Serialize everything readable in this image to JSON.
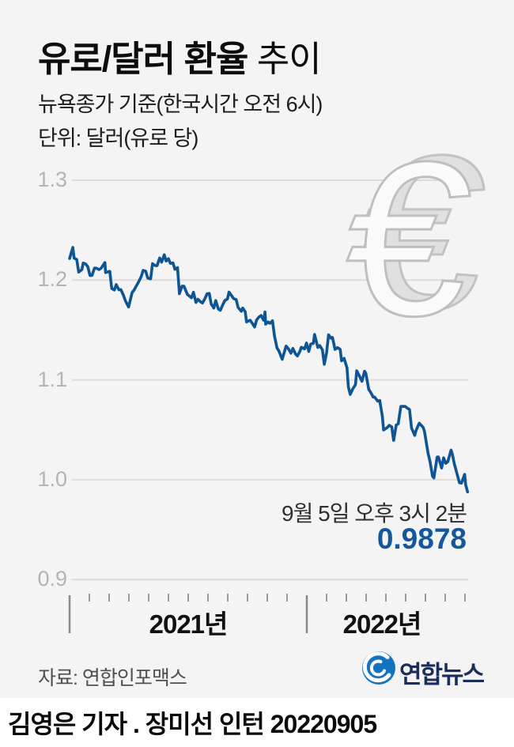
{
  "header": {
    "title_bold": "유로/달러 환율",
    "title_regular": " 추이",
    "subtitle": "뉴욕종가 기준(한국시간 오전 6시)",
    "unit": "단위: 달러(유로 당)"
  },
  "chart_data": {
    "type": "line",
    "title": "유로/달러 환율 추이",
    "ylabel": "달러(유로 당)",
    "ylim": [
      0.9,
      1.3
    ],
    "y_ticks": [
      1.3,
      1.2,
      1.1,
      1.0,
      0.9
    ],
    "y_tick_labels": [
      "1.3",
      "1.2",
      "1.1",
      "1.0",
      "0.9"
    ],
    "grid": true,
    "line_color": "#0d5594",
    "x_range": [
      "2021-01-01",
      "2022-09-05"
    ],
    "x_year_ticks": [
      {
        "date": "2021-01-01",
        "label": "2021년"
      },
      {
        "date": "2022-01-01",
        "label": "2022년"
      }
    ],
    "x_minor_tick_unit": "month",
    "annotation": {
      "time_label": "9월 5일 오후 3시 2분",
      "value_label": "0.9878",
      "value": 0.9878,
      "date": "2022-09-05"
    },
    "series": [
      {
        "name": "EUR/USD",
        "points": [
          [
            "2021-01-01",
            1.2216
          ],
          [
            "2021-01-06",
            1.2327
          ],
          [
            "2021-01-08",
            1.222
          ],
          [
            "2021-01-12",
            1.2207
          ],
          [
            "2021-01-15",
            1.208
          ],
          [
            "2021-01-20",
            1.2105
          ],
          [
            "2021-01-22",
            1.217
          ],
          [
            "2021-01-26",
            1.216
          ],
          [
            "2021-01-29",
            1.2135
          ],
          [
            "2021-02-02",
            1.2045
          ],
          [
            "2021-02-05",
            1.2047
          ],
          [
            "2021-02-09",
            1.212
          ],
          [
            "2021-02-12",
            1.2119
          ],
          [
            "2021-02-16",
            1.2105
          ],
          [
            "2021-02-19",
            1.2118
          ],
          [
            "2021-02-25",
            1.2175
          ],
          [
            "2021-02-26",
            1.2075
          ],
          [
            "2021-03-02",
            1.2088
          ],
          [
            "2021-03-05",
            1.1915
          ],
          [
            "2021-03-09",
            1.19
          ],
          [
            "2021-03-12",
            1.1955
          ],
          [
            "2021-03-16",
            1.1903
          ],
          [
            "2021-03-19",
            1.1905
          ],
          [
            "2021-03-23",
            1.185
          ],
          [
            "2021-03-26",
            1.1794
          ],
          [
            "2021-03-31",
            1.173
          ],
          [
            "2021-04-06",
            1.1875
          ],
          [
            "2021-04-09",
            1.19
          ],
          [
            "2021-04-13",
            1.1947
          ],
          [
            "2021-04-16",
            1.1982
          ],
          [
            "2021-04-20",
            1.2035
          ],
          [
            "2021-04-23",
            1.2097
          ],
          [
            "2021-04-27",
            1.2088
          ],
          [
            "2021-04-30",
            1.202
          ],
          [
            "2021-05-04",
            1.2013
          ],
          [
            "2021-05-07",
            1.2165
          ],
          [
            "2021-05-11",
            1.2145
          ],
          [
            "2021-05-14",
            1.2144
          ],
          [
            "2021-05-18",
            1.2222
          ],
          [
            "2021-05-21",
            1.218
          ],
          [
            "2021-05-25",
            1.2254
          ],
          [
            "2021-05-28",
            1.219
          ],
          [
            "2021-06-01",
            1.2214
          ],
          [
            "2021-06-04",
            1.2167
          ],
          [
            "2021-06-08",
            1.2172
          ],
          [
            "2021-06-11",
            1.2108
          ],
          [
            "2021-06-15",
            1.2125
          ],
          [
            "2021-06-18",
            1.1863
          ],
          [
            "2021-06-22",
            1.194
          ],
          [
            "2021-06-25",
            1.1938
          ],
          [
            "2021-06-30",
            1.1858
          ],
          [
            "2021-07-06",
            1.1823
          ],
          [
            "2021-07-09",
            1.1878
          ],
          [
            "2021-07-13",
            1.1775
          ],
          [
            "2021-07-16",
            1.1808
          ],
          [
            "2021-07-20",
            1.1782
          ],
          [
            "2021-07-23",
            1.177
          ],
          [
            "2021-07-27",
            1.1816
          ],
          [
            "2021-07-30",
            1.1862
          ],
          [
            "2021-08-03",
            1.1866
          ],
          [
            "2021-08-06",
            1.1761
          ],
          [
            "2021-08-10",
            1.172
          ],
          [
            "2021-08-13",
            1.1795
          ],
          [
            "2021-08-17",
            1.171
          ],
          [
            "2021-08-20",
            1.1697
          ],
          [
            "2021-08-24",
            1.1755
          ],
          [
            "2021-08-27",
            1.1795
          ],
          [
            "2021-08-31",
            1.181
          ],
          [
            "2021-09-03",
            1.188
          ],
          [
            "2021-09-07",
            1.1843
          ],
          [
            "2021-09-10",
            1.1815
          ],
          [
            "2021-09-14",
            1.1805
          ],
          [
            "2021-09-17",
            1.1725
          ],
          [
            "2021-09-22",
            1.1687
          ],
          [
            "2021-09-24",
            1.172
          ],
          [
            "2021-09-28",
            1.1683
          ],
          [
            "2021-09-30",
            1.158
          ],
          [
            "2021-10-05",
            1.1598
          ],
          [
            "2021-10-08",
            1.1571
          ],
          [
            "2021-10-12",
            1.153
          ],
          [
            "2021-10-15",
            1.16
          ],
          [
            "2021-10-19",
            1.1633
          ],
          [
            "2021-10-22",
            1.1645
          ],
          [
            "2021-10-26",
            1.1596
          ],
          [
            "2021-10-28",
            1.168
          ],
          [
            "2021-10-29",
            1.1558
          ],
          [
            "2021-11-02",
            1.158
          ],
          [
            "2021-11-05",
            1.1567
          ],
          [
            "2021-11-09",
            1.1592
          ],
          [
            "2021-11-12",
            1.1445
          ],
          [
            "2021-11-16",
            1.132
          ],
          [
            "2021-11-19",
            1.1288
          ],
          [
            "2021-11-24",
            1.1206
          ],
          [
            "2021-11-30",
            1.1339
          ],
          [
            "2021-12-03",
            1.1313
          ],
          [
            "2021-12-07",
            1.1268
          ],
          [
            "2021-12-10",
            1.1315
          ],
          [
            "2021-12-14",
            1.126
          ],
          [
            "2021-12-17",
            1.124
          ],
          [
            "2021-12-21",
            1.1288
          ],
          [
            "2021-12-23",
            1.1327
          ],
          [
            "2021-12-28",
            1.131
          ],
          [
            "2021-12-31",
            1.137
          ],
          [
            "2022-01-04",
            1.1285
          ],
          [
            "2022-01-07",
            1.1359
          ],
          [
            "2022-01-11",
            1.1366
          ],
          [
            "2022-01-13",
            1.1455
          ],
          [
            "2022-01-18",
            1.1325
          ],
          [
            "2022-01-21",
            1.1344
          ],
          [
            "2022-01-25",
            1.1301
          ],
          [
            "2022-01-28",
            1.1156
          ],
          [
            "2022-02-01",
            1.1273
          ],
          [
            "2022-02-04",
            1.1452
          ],
          [
            "2022-02-08",
            1.1417
          ],
          [
            "2022-02-10",
            1.1426
          ],
          [
            "2022-02-14",
            1.1306
          ],
          [
            "2022-02-18",
            1.1324
          ],
          [
            "2022-02-22",
            1.1306
          ],
          [
            "2022-02-24",
            1.1192
          ],
          [
            "2022-02-28",
            1.1216
          ],
          [
            "2022-03-02",
            1.1121
          ],
          [
            "2022-03-04",
            1.0932
          ],
          [
            "2022-03-07",
            1.0854
          ],
          [
            "2022-03-11",
            1.0911
          ],
          [
            "2022-03-15",
            1.0952
          ],
          [
            "2022-03-17",
            1.1091
          ],
          [
            "2022-03-22",
            1.1028
          ],
          [
            "2022-03-25",
            1.0986
          ],
          [
            "2022-03-29",
            1.1087
          ],
          [
            "2022-03-31",
            1.1067
          ],
          [
            "2022-04-05",
            1.0905
          ],
          [
            "2022-04-08",
            1.0876
          ],
          [
            "2022-04-12",
            1.0827
          ],
          [
            "2022-04-14",
            1.0828
          ],
          [
            "2022-04-19",
            1.0786
          ],
          [
            "2022-04-22",
            1.0794
          ],
          [
            "2022-04-26",
            1.0637
          ],
          [
            "2022-04-28",
            1.0498
          ],
          [
            "2022-05-03",
            1.0522
          ],
          [
            "2022-05-06",
            1.0545
          ],
          [
            "2022-05-10",
            1.0529
          ],
          [
            "2022-05-13",
            1.0394
          ],
          [
            "2022-05-17",
            1.0549
          ],
          [
            "2022-05-20",
            1.056
          ],
          [
            "2022-05-24",
            1.0734
          ],
          [
            "2022-05-27",
            1.0735
          ],
          [
            "2022-05-31",
            1.0734
          ],
          [
            "2022-06-03",
            1.0719
          ],
          [
            "2022-06-07",
            1.0703
          ],
          [
            "2022-06-10",
            1.0518
          ],
          [
            "2022-06-15",
            1.0444
          ],
          [
            "2022-06-17",
            1.0493
          ],
          [
            "2022-06-22",
            1.0566
          ],
          [
            "2022-06-24",
            1.0552
          ],
          [
            "2022-06-28",
            1.0524
          ],
          [
            "2022-06-30",
            1.0484
          ],
          [
            "2022-07-05",
            1.0266
          ],
          [
            "2022-07-08",
            1.0186
          ],
          [
            "2022-07-12",
            1.0036
          ],
          [
            "2022-07-14",
            1.0018
          ],
          [
            "2022-07-19",
            1.0227
          ],
          [
            "2022-07-21",
            1.0229
          ],
          [
            "2022-07-26",
            1.0117
          ],
          [
            "2022-07-29",
            1.022
          ],
          [
            "2022-08-02",
            1.0164
          ],
          [
            "2022-08-05",
            1.0181
          ],
          [
            "2022-08-10",
            1.0297
          ],
          [
            "2022-08-12",
            1.0258
          ],
          [
            "2022-08-15",
            1.016
          ],
          [
            "2022-08-18",
            1.009
          ],
          [
            "2022-08-23",
            0.997
          ],
          [
            "2022-08-26",
            0.9966
          ],
          [
            "2022-08-31",
            1.0054
          ],
          [
            "2022-09-02",
            0.9952
          ],
          [
            "2022-09-05",
            0.9878
          ]
        ]
      }
    ]
  },
  "euro_icon": {
    "glyph": "€"
  },
  "footer": {
    "source": "자료: 연합인포맥스",
    "logo_text": "연합뉴스"
  },
  "credit": "김영은 기자 . 장미선 인턴 20220905"
}
